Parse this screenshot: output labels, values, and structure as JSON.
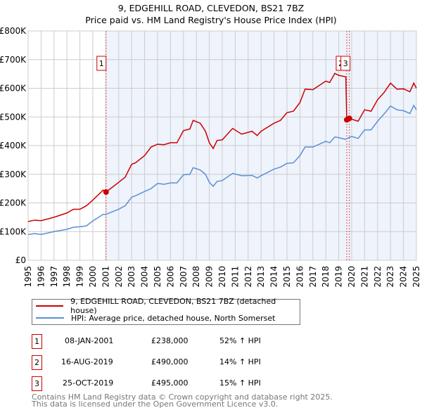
{
  "chart_data": {
    "type": "line",
    "title": "9, EDGEHILL ROAD, CLEVEDON, BS21 7BZ",
    "subtitle": "Price paid vs. HM Land Registry's House Price Index (HPI)",
    "xlim": [
      1995,
      2025
    ],
    "ylim": [
      0,
      800000
    ],
    "y_ticks": [
      0,
      100000,
      200000,
      300000,
      400000,
      500000,
      600000,
      700000,
      800000
    ],
    "y_tick_labels": [
      "£0",
      "£100K",
      "£200K",
      "£300K",
      "£400K",
      "£500K",
      "£600K",
      "£700K",
      "£800K"
    ],
    "x_ticks": [
      "1995",
      "1996",
      "1997",
      "1998",
      "1999",
      "2000",
      "2001",
      "2002",
      "2003",
      "2004",
      "2005",
      "2006",
      "2007",
      "2008",
      "2009",
      "2010",
      "2011",
      "2012",
      "2013",
      "2014",
      "2015",
      "2016",
      "2017",
      "2018",
      "2019",
      "2020",
      "2021",
      "2022",
      "2023",
      "2024",
      "2025"
    ],
    "grid": true,
    "colors": {
      "property": "#cc0000",
      "hpi": "#5b8fd4",
      "shade": "#eef3fc"
    },
    "series": [
      {
        "name": "9, EDGEHILL ROAD, CLEVEDON, BS21 7BZ (detached house)",
        "x": [
          1995,
          1995.5,
          1996,
          1997,
          1998,
          1998.5,
          1999,
          1999.5,
          2000,
          2000.8,
          2001.02,
          2002,
          2002.5,
          2003,
          2003.3,
          2004,
          2004.5,
          2005,
          2005.5,
          2006,
          2006.5,
          2007,
          2007.5,
          2007.75,
          2008.3,
          2008.7,
          2009,
          2009.3,
          2009.6,
          2010,
          2010.8,
          2011.5,
          2012.3,
          2012.7,
          2013,
          2014,
          2014.5,
          2015,
          2015.5,
          2016,
          2016.4,
          2017,
          2018,
          2018.3,
          2018.7,
          2019,
          2019.55,
          2019.62,
          2019.82,
          2020.5,
          2021,
          2021.5,
          2022,
          2022.5,
          2023,
          2023.5,
          2024,
          2024.5,
          2024.8,
          2025
        ],
        "y": [
          135000,
          140000,
          138000,
          150000,
          165000,
          178000,
          178000,
          190000,
          210000,
          245000,
          238000,
          272000,
          290000,
          335000,
          340000,
          365000,
          395000,
          405000,
          403000,
          410000,
          410000,
          452000,
          458000,
          488000,
          478000,
          450000,
          410000,
          390000,
          418000,
          420000,
          460000,
          440000,
          450000,
          435000,
          450000,
          478000,
          488000,
          515000,
          520000,
          550000,
          597000,
          595000,
          625000,
          620000,
          652000,
          645000,
          640000,
          490000,
          495000,
          485000,
          525000,
          520000,
          560000,
          585000,
          618000,
          597000,
          598000,
          588000,
          618000,
          600000
        ]
      },
      {
        "name": "HPI: Average price, detached house, North Somerset",
        "x": [
          1995,
          1995.5,
          1996,
          1997,
          1998,
          1998.5,
          1999,
          1999.5,
          2000,
          2000.8,
          2001,
          2002,
          2002.5,
          2003,
          2003.3,
          2004,
          2004.5,
          2005,
          2005.5,
          2006,
          2006.5,
          2007,
          2007.5,
          2007.75,
          2008.3,
          2008.7,
          2009,
          2009.3,
          2009.6,
          2010,
          2010.8,
          2011.5,
          2012.3,
          2012.7,
          2013,
          2014,
          2014.5,
          2015,
          2015.5,
          2016,
          2016.4,
          2017,
          2018,
          2018.3,
          2018.7,
          2019,
          2019.5,
          2020,
          2020.5,
          2021,
          2021.5,
          2022,
          2022.5,
          2023,
          2023.5,
          2024,
          2024.5,
          2024.8,
          2025
        ],
        "y": [
          90000,
          93000,
          90000,
          100000,
          108000,
          115000,
          117000,
          120000,
          137000,
          160000,
          160000,
          178000,
          190000,
          220000,
          225000,
          240000,
          250000,
          268000,
          265000,
          270000,
          270000,
          298000,
          300000,
          323000,
          315000,
          300000,
          272000,
          258000,
          275000,
          278000,
          303000,
          295000,
          296000,
          287000,
          295000,
          318000,
          325000,
          338000,
          340000,
          365000,
          395000,
          395000,
          415000,
          410000,
          430000,
          428000,
          422000,
          432000,
          425000,
          455000,
          455000,
          485000,
          510000,
          538000,
          525000,
          522000,
          512000,
          540000,
          525000
        ]
      }
    ],
    "annotations": [
      {
        "label": "1",
        "x": 2001.02,
        "y": 238000
      },
      {
        "label": "2",
        "x": 2019.62,
        "y": 490000
      },
      {
        "label": "3",
        "x": 2019.82,
        "y": 495000
      }
    ],
    "shaded_from": 2001.02,
    "legend_position": "below"
  },
  "transactions": [
    {
      "num": "1",
      "date": "08-JAN-2001",
      "price": "£238,000",
      "hpi": "52% ↑ HPI"
    },
    {
      "num": "2",
      "date": "16-AUG-2019",
      "price": "£490,000",
      "hpi": "14% ↑ HPI"
    },
    {
      "num": "3",
      "date": "25-OCT-2019",
      "price": "£495,000",
      "hpi": "15% ↑ HPI"
    }
  ],
  "footer": {
    "line1": "Contains HM Land Registry data © Crown copyright and database right 2025.",
    "line2": "This data is licensed under the Open Government Licence v3.0."
  }
}
